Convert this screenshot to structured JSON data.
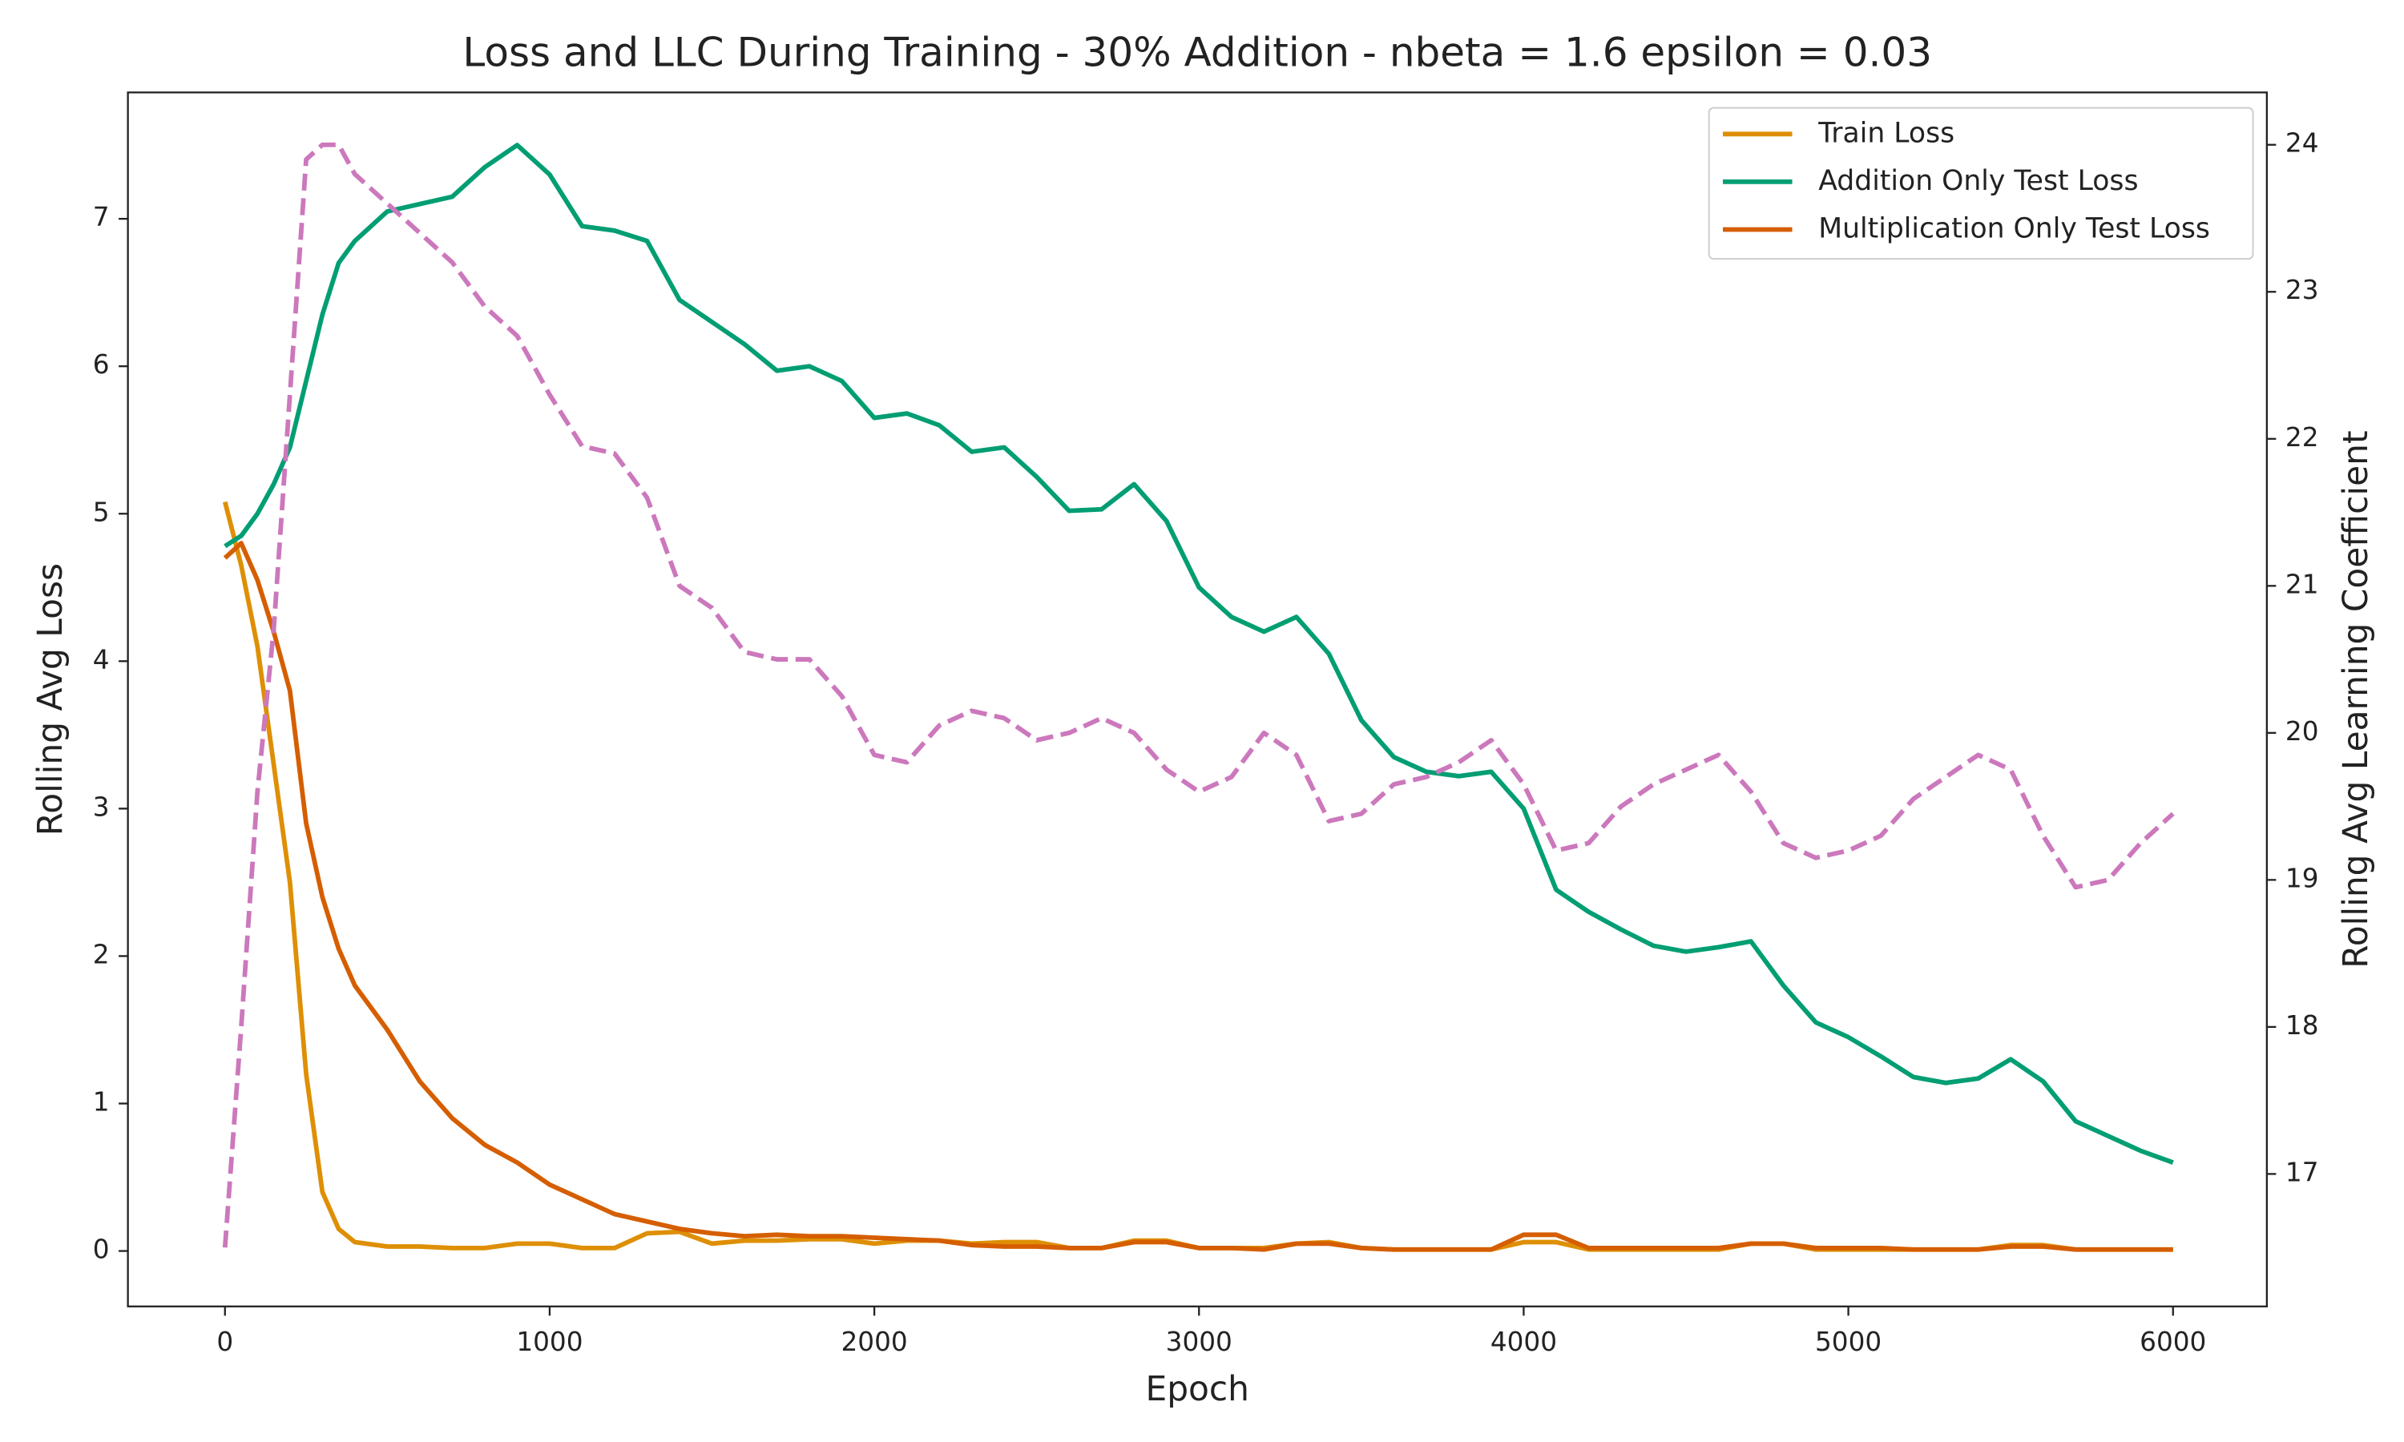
{
  "chart_data": {
    "type": "line",
    "title": "Loss and LLC During Training - 30% Addition - nbeta = 1.6 epsilon = 0.03",
    "x_label": "Epoch",
    "y_label": "Rolling Avg Loss",
    "y2_label": "Rolling Avg Learning Coefficient",
    "x": [
      0,
      50,
      100,
      150,
      200,
      250,
      300,
      350,
      400,
      500,
      600,
      700,
      800,
      900,
      1000,
      1100,
      1200,
      1300,
      1400,
      1500,
      1600,
      1700,
      1800,
      1900,
      2000,
      2100,
      2200,
      2300,
      2400,
      2500,
      2600,
      2700,
      2800,
      2900,
      3000,
      3100,
      3200,
      3300,
      3400,
      3500,
      3600,
      3700,
      3800,
      3900,
      4000,
      4100,
      4200,
      4300,
      4400,
      4500,
      4600,
      4700,
      4800,
      4900,
      5000,
      5100,
      5200,
      5300,
      5400,
      5500,
      5600,
      5700,
      5800,
      5900,
      6000
    ],
    "series": [
      {
        "name": "Train Loss",
        "color": "#de8f05",
        "values": [
          5.08,
          4.65,
          4.1,
          3.3,
          2.5,
          1.2,
          0.4,
          0.15,
          0.06,
          0.03,
          0.03,
          0.02,
          0.02,
          0.05,
          0.05,
          0.02,
          0.02,
          0.12,
          0.13,
          0.05,
          0.07,
          0.07,
          0.08,
          0.08,
          0.05,
          0.07,
          0.07,
          0.05,
          0.06,
          0.06,
          0.02,
          0.02,
          0.07,
          0.07,
          0.02,
          0.02,
          0.02,
          0.05,
          0.06,
          0.02,
          0.01,
          0.01,
          0.01,
          0.01,
          0.06,
          0.06,
          0.01,
          0.01,
          0.01,
          0.01,
          0.01,
          0.05,
          0.05,
          0.01,
          0.01,
          0.01,
          0.01,
          0.01,
          0.01,
          0.04,
          0.04,
          0.01,
          0.01,
          0.01,
          0.01
        ]
      },
      {
        "name": "Addition Only Test Loss",
        "color": "#029e73",
        "values": [
          4.78,
          4.85,
          5.0,
          5.2,
          5.45,
          5.9,
          6.35,
          6.7,
          6.85,
          7.05,
          7.1,
          7.15,
          7.35,
          7.5,
          7.3,
          6.95,
          6.92,
          6.85,
          6.45,
          6.3,
          6.15,
          5.97,
          6.0,
          5.9,
          5.65,
          5.68,
          5.6,
          5.42,
          5.45,
          5.25,
          5.02,
          5.03,
          5.2,
          4.95,
          4.5,
          4.3,
          4.2,
          4.3,
          4.05,
          3.6,
          3.35,
          3.25,
          3.22,
          3.25,
          3.0,
          2.45,
          2.3,
          2.18,
          2.07,
          2.03,
          2.06,
          2.1,
          1.8,
          1.55,
          1.45,
          1.32,
          1.18,
          1.14,
          1.17,
          1.3,
          1.15,
          0.88,
          0.78,
          0.68,
          0.6
        ]
      },
      {
        "name": "Multiplication Only Test Loss",
        "color": "#d55e00",
        "values": [
          4.7,
          4.8,
          4.55,
          4.2,
          3.8,
          2.9,
          2.4,
          2.05,
          1.8,
          1.5,
          1.15,
          0.9,
          0.72,
          0.6,
          0.45,
          0.35,
          0.25,
          0.2,
          0.15,
          0.12,
          0.1,
          0.11,
          0.1,
          0.1,
          0.09,
          0.08,
          0.07,
          0.04,
          0.03,
          0.03,
          0.02,
          0.02,
          0.06,
          0.06,
          0.02,
          0.02,
          0.01,
          0.05,
          0.05,
          0.02,
          0.01,
          0.01,
          0.01,
          0.01,
          0.11,
          0.11,
          0.02,
          0.02,
          0.02,
          0.02,
          0.02,
          0.05,
          0.05,
          0.02,
          0.02,
          0.02,
          0.01,
          0.01,
          0.01,
          0.03,
          0.03,
          0.01,
          0.01,
          0.01,
          0.01
        ]
      },
      {
        "color": "#cc78bc",
        "axis": "y2",
        "linestyle": "dashed",
        "values": [
          16.5,
          18.0,
          19.6,
          20.7,
          22.3,
          23.9,
          24.0,
          24.0,
          23.8,
          23.6,
          23.4,
          23.2,
          22.9,
          22.7,
          22.3,
          21.95,
          21.9,
          21.6,
          21.0,
          20.85,
          20.55,
          20.5,
          20.5,
          20.25,
          19.85,
          19.8,
          20.05,
          20.15,
          20.1,
          19.95,
          20.0,
          20.1,
          20.0,
          19.75,
          19.6,
          19.7,
          20.0,
          19.85,
          19.4,
          19.45,
          19.65,
          19.7,
          19.8,
          19.95,
          19.65,
          19.2,
          19.25,
          19.5,
          19.65,
          19.75,
          19.85,
          19.6,
          19.25,
          19.15,
          19.2,
          19.3,
          19.55,
          19.7,
          19.85,
          19.75,
          19.3,
          18.95,
          19.0,
          19.25,
          19.45
        ]
      }
    ],
    "xlim": [
      -299,
      6289
    ],
    "xticks": [
      0,
      1000,
      2000,
      3000,
      4000,
      5000,
      6000
    ],
    "ylim": [
      -0.376,
      7.857
    ],
    "yticks": [
      0,
      1,
      2,
      3,
      4,
      5,
      6,
      7
    ],
    "y2lim": [
      16.099,
      24.356
    ],
    "y2ticks": [
      17,
      18,
      19,
      20,
      21,
      22,
      23,
      24
    ],
    "legend": "upper right",
    "grid": false
  }
}
